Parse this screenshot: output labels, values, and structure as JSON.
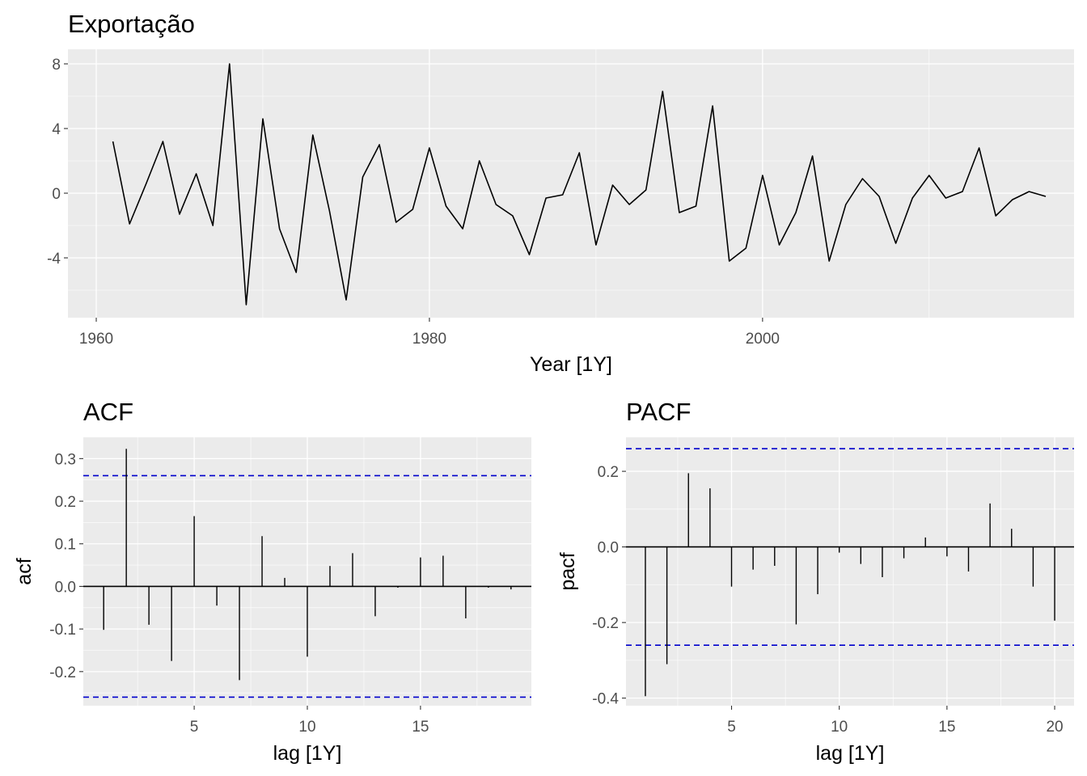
{
  "chart_data": [
    {
      "type": "line",
      "title": "Exportação",
      "xlabel": "Year [1Y]",
      "ylabel": "",
      "xlim": [
        1958.3,
        2018.7
      ],
      "ylim": [
        -7.7,
        8.9
      ],
      "x_ticks": [
        1960,
        1980,
        2000
      ],
      "y_ticks": [
        -4,
        0,
        4,
        8
      ],
      "grid": true,
      "series": [
        {
          "x": [
            1961,
            1962,
            1963,
            1964,
            1965,
            1966,
            1967,
            1968,
            1969,
            1970,
            1971,
            1972,
            1973,
            1974,
            1975,
            1976,
            1977,
            1978,
            1979,
            1980,
            1981,
            1982,
            1983,
            1984,
            1985,
            1986,
            1987,
            1988,
            1989,
            1990,
            1991,
            1992,
            1993,
            1994,
            1995,
            1996,
            1997,
            1998,
            1999,
            2000,
            2001,
            2002,
            2003,
            2004,
            2005,
            2006,
            2007,
            2008,
            2009,
            2010,
            2011,
            2012,
            2013,
            2014,
            2015,
            2016,
            2017
          ],
          "values": [
            3.2,
            -1.9,
            0.6,
            3.2,
            -1.3,
            1.2,
            -2.0,
            8.0,
            -6.9,
            4.6,
            -2.2,
            -4.9,
            3.6,
            -1.1,
            -6.6,
            1.0,
            3.0,
            -1.8,
            -1.0,
            2.8,
            -0.8,
            -2.2,
            2.0,
            -0.7,
            -1.4,
            -3.8,
            -0.3,
            -0.1,
            2.5,
            -3.2,
            0.5,
            -0.7,
            0.2,
            6.3,
            -1.2,
            -0.8,
            5.4,
            -4.2,
            -3.4,
            1.1,
            -3.2,
            -1.2,
            2.3,
            -4.2,
            -0.7,
            0.9,
            -0.2,
            -3.1,
            -0.3,
            1.1,
            -0.3,
            0.1,
            2.8,
            -1.4,
            -0.4,
            0.1,
            -0.2
          ]
        }
      ]
    },
    {
      "type": "bar",
      "title": "ACF",
      "xlabel": "lag [1Y]",
      "ylabel": "acf",
      "xlim": [
        0.1,
        19.9
      ],
      "ylim": [
        -0.28,
        0.35
      ],
      "x_ticks": [
        5,
        10,
        15
      ],
      "y_ticks": [
        -0.2,
        -0.1,
        0.0,
        0.1,
        0.2,
        0.3
      ],
      "y_tick_labels": [
        "-0.2",
        "-0.1",
        "0.0",
        "0.1",
        "0.2",
        "0.3"
      ],
      "confidence_bound": 0.26,
      "grid": true,
      "lags": [
        1,
        2,
        3,
        4,
        5,
        6,
        7,
        8,
        9,
        10,
        11,
        12,
        13,
        14,
        15,
        16,
        17,
        18,
        19
      ],
      "values": [
        -0.102,
        0.323,
        -0.09,
        -0.175,
        0.165,
        -0.045,
        -0.22,
        0.118,
        0.02,
        -0.165,
        0.048,
        0.078,
        -0.07,
        -0.003,
        0.068,
        0.072,
        -0.075,
        -0.003,
        -0.007
      ]
    },
    {
      "type": "bar",
      "title": "PACF",
      "xlabel": "lag [1Y]",
      "ylabel": "pacf",
      "xlim": [
        0.1,
        20.9
      ],
      "ylim": [
        -0.42,
        0.29
      ],
      "x_ticks": [
        5,
        10,
        15,
        20
      ],
      "y_ticks": [
        -0.4,
        -0.2,
        0.0,
        0.2
      ],
      "y_tick_labels": [
        "-0.4",
        "-0.2",
        "0.0",
        "0.2"
      ],
      "confidence_bound": 0.26,
      "grid": true,
      "lags": [
        1,
        2,
        3,
        4,
        5,
        6,
        7,
        8,
        9,
        10,
        11,
        12,
        13,
        14,
        15,
        16,
        17,
        18,
        19,
        20
      ],
      "values": [
        -0.395,
        -0.31,
        0.195,
        0.155,
        -0.105,
        -0.06,
        -0.05,
        -0.205,
        -0.125,
        -0.015,
        -0.045,
        -0.08,
        -0.03,
        0.025,
        -0.025,
        -0.065,
        0.115,
        0.048,
        -0.105,
        -0.195
      ]
    }
  ],
  "colors": {
    "panel": "#ebebeb",
    "grid_major": "#ffffff",
    "line": "#000000",
    "bound": "#0000cc",
    "text": "#000000",
    "tick_text": "#4d4d4d"
  }
}
